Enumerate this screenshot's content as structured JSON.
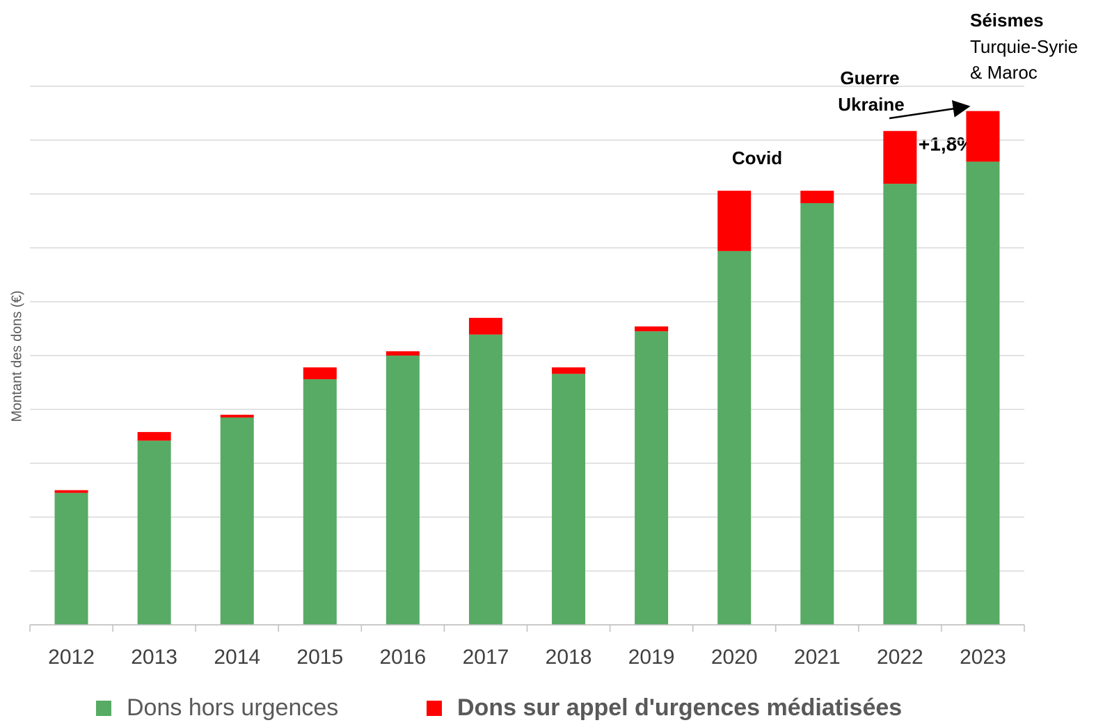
{
  "chart_data": {
    "type": "stacked_bar",
    "y_label": "Montant des dons (€)",
    "categories": [
      "2012",
      "2013",
      "2014",
      "2015",
      "2016",
      "2017",
      "2018",
      "2019",
      "2020",
      "2021",
      "2022",
      "2023"
    ],
    "series": [
      {
        "name": "Dons hors urgences",
        "color": "#57ab64",
        "values": [
          2.45,
          3.42,
          3.85,
          4.56,
          5.0,
          5.39,
          4.66,
          5.45,
          6.94,
          7.83,
          8.19,
          8.6
        ]
      },
      {
        "name": "Dons sur appel d'urgences médiatisées",
        "color": "#ff0000",
        "values": [
          0.05,
          0.16,
          0.05,
          0.22,
          0.08,
          0.31,
          0.12,
          0.09,
          1.12,
          0.23,
          0.98,
          0.94
        ]
      }
    ],
    "ylim": [
      0,
      10
    ],
    "yticks": [
      0,
      1,
      2,
      3,
      4,
      5,
      6,
      7,
      8,
      9,
      10
    ],
    "grid": true,
    "legend": "bottom",
    "annotations": [
      "Covid",
      "Guerre",
      "Ukraine",
      "+1,8%",
      "Séismes",
      "Turquie-Syrie",
      "& Maroc"
    ]
  }
}
